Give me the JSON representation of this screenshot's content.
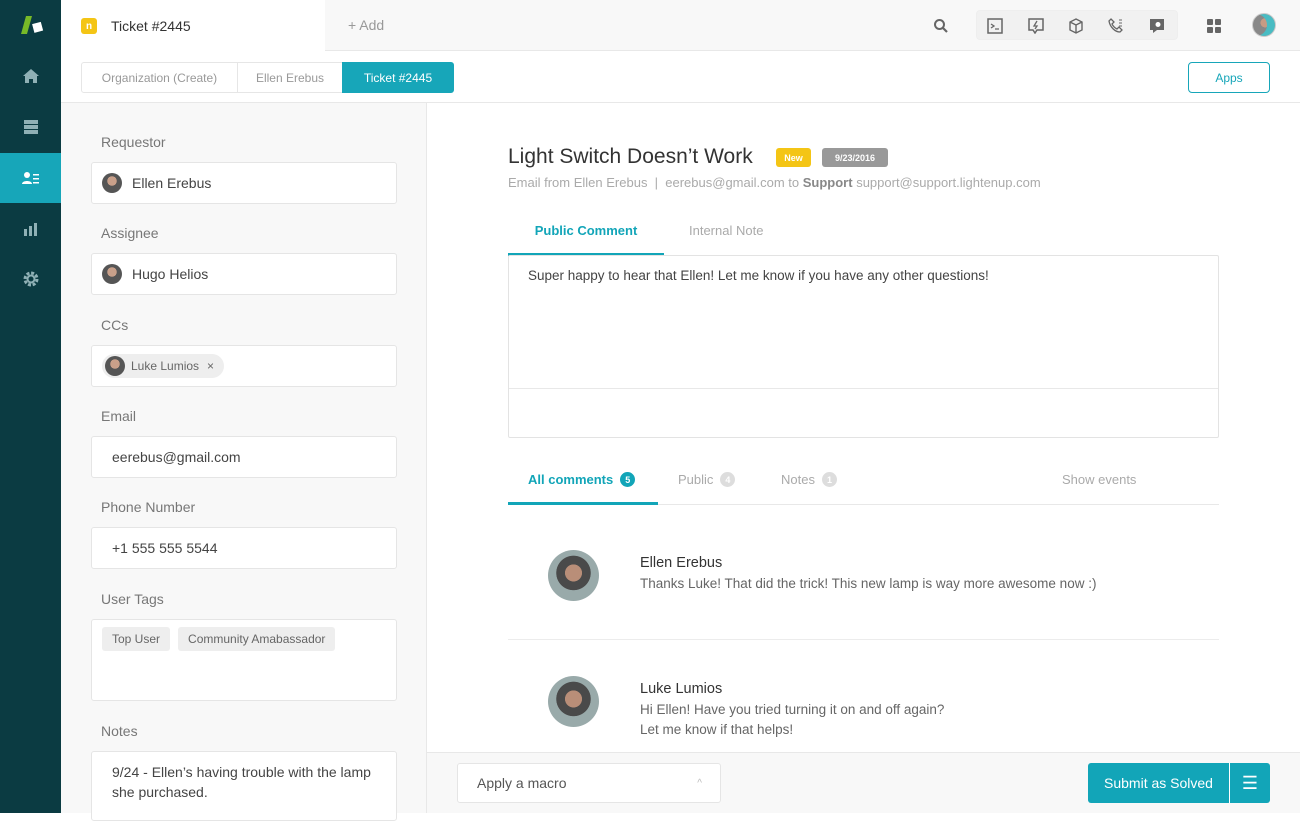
{
  "colors": {
    "accent": "#17a6b9",
    "sidebar": "#0b3b42",
    "new_badge": "#f4c515",
    "date_badge": "#999999"
  },
  "nav": {
    "items": [
      {
        "icon": "home-icon"
      },
      {
        "icon": "views-icon"
      },
      {
        "icon": "users-icon",
        "active": true
      },
      {
        "icon": "reporting-icon"
      },
      {
        "icon": "settings-icon"
      }
    ]
  },
  "topbar": {
    "tab_badge": "n",
    "tab_title": "Ticket #2445",
    "add_label": "+ Add"
  },
  "breadcrumbs": [
    "Organization (Create)",
    "Ellen Erebus",
    "Ticket #2445"
  ],
  "apps_label": "Apps",
  "left": {
    "requestor_label": "Requestor",
    "requestor": "Ellen Erebus",
    "assignee_label": "Assignee",
    "assignee": "Hugo Helios",
    "ccs_label": "CCs",
    "cc": "Luke Lumios",
    "cc_remove": "×",
    "email_label": "Email",
    "email": "eerebus@gmail.com",
    "phone_label": "Phone Number",
    "phone": "+1 555 555 5544",
    "tags_label": "User Tags",
    "tags": [
      "Top User",
      "Community Amabassador"
    ],
    "notes_label": "Notes",
    "notes": "9/24 - Ellen’s having trouble with the lamp she purchased."
  },
  "ticket": {
    "title": "Light Switch Doesn’t Work",
    "status": "New",
    "date": "9/23/2016",
    "meta_from": "Email from Ellen Erebus  |  eerebus@gmail.com to ",
    "meta_to_name": "Support",
    "meta_to_email": " support@support.lightenup.com",
    "compose_tabs": [
      "Public Comment",
      "Internal Note"
    ],
    "compose_text": "Super happy to hear that Ellen! Let me know if you have any other questions!",
    "filter_tabs": [
      {
        "label": "All comments",
        "count": "5"
      },
      {
        "label": "Public",
        "count": "4"
      },
      {
        "label": "Notes",
        "count": "1"
      }
    ],
    "show_events": "Show events",
    "comments": [
      {
        "author": "Ellen Erebus",
        "lines": [
          "Thanks Luke! That did the trick! This new lamp is way more awesome now :)"
        ]
      },
      {
        "author": "Luke Lumios",
        "lines": [
          "Hi Ellen! Have you tried turning it on and off again?",
          "Let me know if that helps!"
        ]
      }
    ]
  },
  "footer": {
    "macro_placeholder": "Apply a macro",
    "submit_label": "Submit as Solved",
    "menu_icon": "☰"
  }
}
